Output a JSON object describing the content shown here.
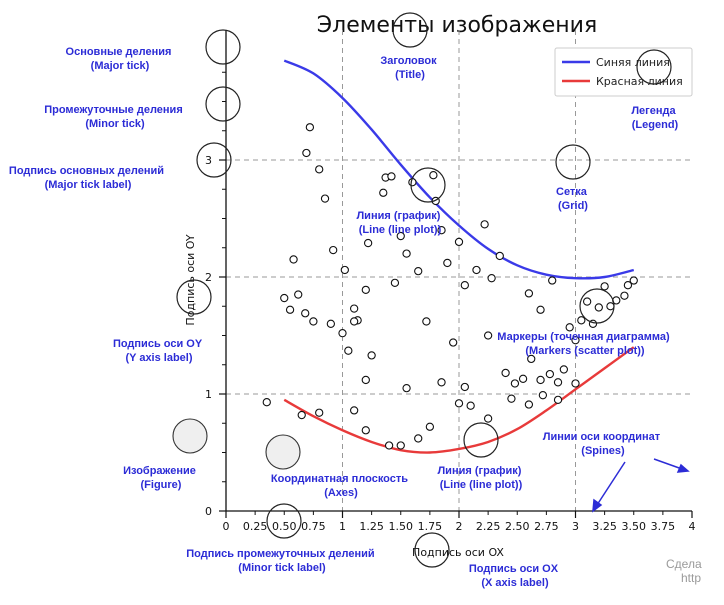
{
  "chart_data": {
    "type": "line",
    "title": "Элементы изображения",
    "xlabel": "Подпись оси OX",
    "ylabel": "Подпись оси OY",
    "xlim": [
      0,
      4
    ],
    "ylim": [
      0,
      4
    ],
    "x_major_ticks": [
      "0",
      "1",
      "2",
      "3",
      "4"
    ],
    "x_minor_ticks": [
      "0.25",
      "0.50",
      "0.75",
      "1.25",
      "1.50",
      "1.75",
      "2.25",
      "2.50",
      "2.75",
      "3.25",
      "3.50",
      "3.75"
    ],
    "y_major_ticks": [
      "0",
      "1",
      "2",
      "3"
    ],
    "grid": true,
    "legend_position": "top-right",
    "series": [
      {
        "name": "Синяя линия",
        "color": "#3a3ae8",
        "x": [
          0.5,
          0.75,
          1.0,
          1.25,
          1.5,
          1.75,
          2.0,
          2.25,
          2.5,
          2.75,
          3.0,
          3.25,
          3.5
        ],
        "y": [
          3.85,
          3.74,
          3.53,
          3.26,
          2.96,
          2.68,
          2.44,
          2.24,
          2.1,
          2.02,
          1.99,
          2.0,
          2.06
        ]
      },
      {
        "name": "Красная линия",
        "color": "#e83a3a",
        "x": [
          0.5,
          0.75,
          1.0,
          1.25,
          1.5,
          1.75,
          2.0,
          2.25,
          2.5,
          2.75,
          3.0,
          3.25,
          3.5
        ],
        "y": [
          0.95,
          0.81,
          0.69,
          0.59,
          0.52,
          0.5,
          0.53,
          0.59,
          0.7,
          0.86,
          1.04,
          1.22,
          1.4
        ]
      }
    ],
    "scatter": [
      [
        0.58,
        2.15
      ],
      [
        0.72,
        3.28
      ],
      [
        0.69,
        3.06
      ],
      [
        0.8,
        2.92
      ],
      [
        0.85,
        2.67
      ],
      [
        0.92,
        2.23
      ],
      [
        1.02,
        2.06
      ],
      [
        1.1,
        1.73
      ],
      [
        1.13,
        1.63
      ],
      [
        1.2,
        1.89
      ],
      [
        1.22,
        2.29
      ],
      [
        1.35,
        2.72
      ],
      [
        1.37,
        2.85
      ],
      [
        1.42,
        2.86
      ],
      [
        1.45,
        1.95
      ],
      [
        1.5,
        2.35
      ],
      [
        1.55,
        2.2
      ],
      [
        1.6,
        2.81
      ],
      [
        1.65,
        2.05
      ],
      [
        1.72,
        1.62
      ],
      [
        1.78,
        2.87
      ],
      [
        1.8,
        2.65
      ],
      [
        1.85,
        2.4
      ],
      [
        1.9,
        2.12
      ],
      [
        2.0,
        2.3
      ],
      [
        2.05,
        1.93
      ],
      [
        2.15,
        2.06
      ],
      [
        2.22,
        2.45
      ],
      [
        2.28,
        1.99
      ],
      [
        2.35,
        2.18
      ],
      [
        0.5,
        1.82
      ],
      [
        0.55,
        1.72
      ],
      [
        0.62,
        1.85
      ],
      [
        0.68,
        1.69
      ],
      [
        0.75,
        1.62
      ],
      [
        0.9,
        1.6
      ],
      [
        1.0,
        1.52
      ],
      [
        1.1,
        1.62
      ],
      [
        1.05,
        1.37
      ],
      [
        1.25,
        1.33
      ],
      [
        1.2,
        1.12
      ],
      [
        1.55,
        1.05
      ],
      [
        1.85,
        1.1
      ],
      [
        2.05,
        1.06
      ],
      [
        1.95,
        1.44
      ],
      [
        2.25,
        1.5
      ],
      [
        2.4,
        1.18
      ],
      [
        2.48,
        1.09
      ],
      [
        2.55,
        1.13
      ],
      [
        2.62,
        1.3
      ],
      [
        2.7,
        1.12
      ],
      [
        2.78,
        1.17
      ],
      [
        2.85,
        1.1
      ],
      [
        2.9,
        1.21
      ],
      [
        2.95,
        1.57
      ],
      [
        3.0,
        1.46
      ],
      [
        3.05,
        1.63
      ],
      [
        3.1,
        1.79
      ],
      [
        3.15,
        1.6
      ],
      [
        3.2,
        1.74
      ],
      [
        3.25,
        1.92
      ],
      [
        3.3,
        1.75
      ],
      [
        3.35,
        1.8
      ],
      [
        3.42,
        1.84
      ],
      [
        3.45,
        1.93
      ],
      [
        3.5,
        1.97
      ],
      [
        2.6,
        1.86
      ],
      [
        2.7,
        1.72
      ],
      [
        2.8,
        1.97
      ],
      [
        0.35,
        0.93
      ],
      [
        0.65,
        0.82
      ],
      [
        0.8,
        0.84
      ],
      [
        1.1,
        0.86
      ],
      [
        1.2,
        0.69
      ],
      [
        1.4,
        0.56
      ],
      [
        1.5,
        0.56
      ],
      [
        1.65,
        0.62
      ],
      [
        1.75,
        0.72
      ],
      [
        2.0,
        0.92
      ],
      [
        2.1,
        0.9
      ],
      [
        2.25,
        0.79
      ],
      [
        2.45,
        0.96
      ],
      [
        2.6,
        0.91
      ],
      [
        2.72,
        0.99
      ],
      [
        2.85,
        0.95
      ],
      [
        3.0,
        1.09
      ]
    ]
  },
  "legend": {
    "blue": "Синяя линия",
    "red": "Красная линия"
  },
  "annotations": {
    "major_tick": [
      "Основные деления",
      "(Major tick)"
    ],
    "minor_tick": [
      "Промежуточные деления",
      "(Minor tick)"
    ],
    "major_tick_label": [
      "Подпись основных делений",
      "(Major tick label)"
    ],
    "y_axis_label": [
      "Подпись оси OY",
      "(Y axis label)"
    ],
    "figure": [
      "Изображение",
      "(Figure)"
    ],
    "axes": [
      "Координатная плоскость",
      "(Axes)"
    ],
    "title": [
      "Заголовок",
      "(Title)"
    ],
    "legend": [
      "Легенда",
      "(Legend)"
    ],
    "grid": [
      "Сетка",
      "(Grid)"
    ],
    "line_plot_top": [
      "Линия (график)",
      "(Line (line plot))"
    ],
    "markers": [
      "Маркеры (точечная диаграмма)",
      "(Markers (scatter plot))"
    ],
    "line_plot_bottom": [
      "Линия (график)",
      "(Line (line plot))"
    ],
    "spines": [
      "Линии оси координат",
      "(Spines)"
    ],
    "minor_tick_label": [
      "Подпись промежуточных делений",
      "(Minor tick label)"
    ],
    "x_axis_label": [
      "Подпись оси OX",
      "(X axis label)"
    ]
  },
  "footer": {
    "line1": "Сдела",
    "line2": "http"
  },
  "colors": {
    "annotation": "#2c2cd6",
    "grid": "#999999",
    "blue_line": "#3a3ae8",
    "red_line": "#e83a3a"
  }
}
